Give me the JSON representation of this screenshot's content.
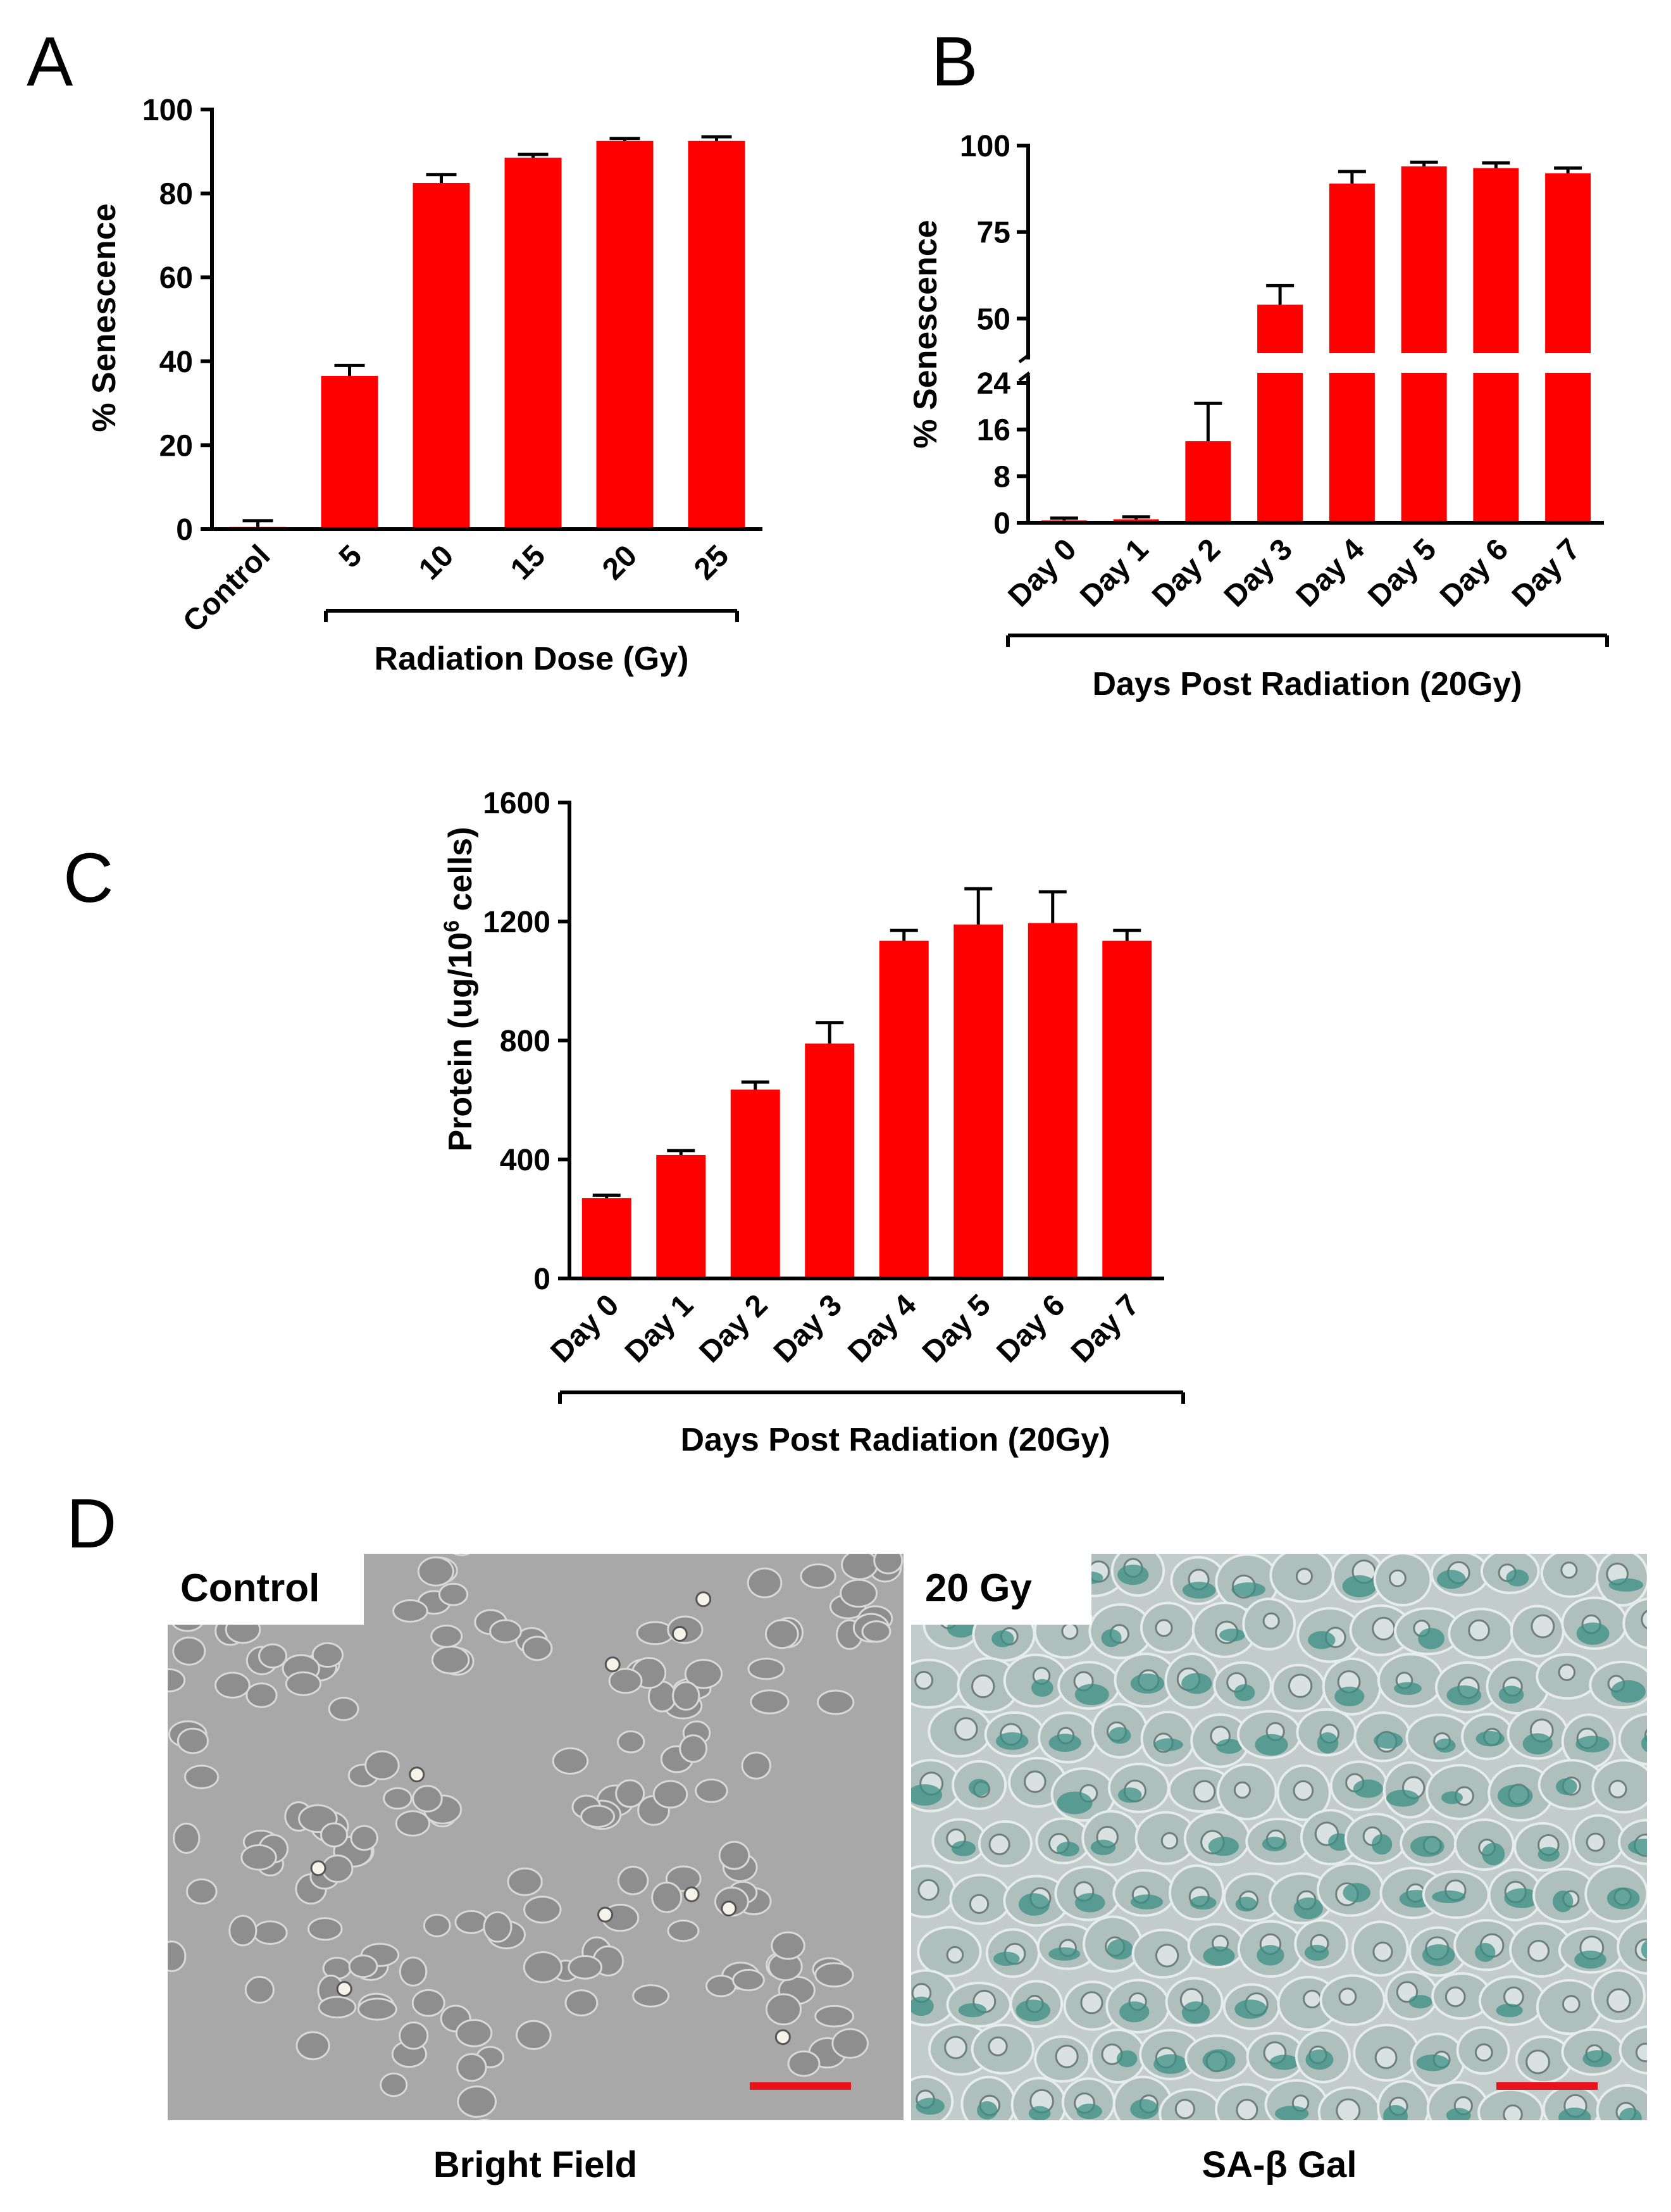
{
  "panels": {
    "A": {
      "letter": "A"
    },
    "B": {
      "letter": "B"
    },
    "C": {
      "letter": "C"
    },
    "D": {
      "letter": "D",
      "left_label": "Control",
      "right_label": "20 Gy",
      "left_caption": "Bright Field",
      "right_caption": "SA-β Gal"
    }
  },
  "colors": {
    "bar": "#ff0000",
    "axis": "#000000",
    "scale_bar": "#e8141b",
    "bright_field_bg": "#a8a8a8",
    "sa_gal_bg": "#c2cdcb",
    "stain": "#3b8f86"
  },
  "chart_data": [
    {
      "panel": "A",
      "type": "bar",
      "categories": [
        "Control",
        "5",
        "10",
        "15",
        "20",
        "25"
      ],
      "values": [
        0.5,
        36.5,
        82.5,
        88.5,
        92.5,
        92.5
      ],
      "errors": [
        1.5,
        2.5,
        2.0,
        0.8,
        0.6,
        1.0
      ],
      "ylabel": "% Senescence",
      "xlabel": "Radiation Dose (Gy)",
      "ylim": [
        0,
        100
      ],
      "yticks": [
        "0",
        "20",
        "40",
        "60",
        "80",
        "100"
      ],
      "grid": false
    },
    {
      "panel": "B",
      "type": "bar",
      "categories": [
        "Day 0",
        "Day 1",
        "Day 2",
        "Day 3",
        "Day 4",
        "Day 5",
        "Day 6",
        "Day 7"
      ],
      "values": [
        0.4,
        0.6,
        14,
        54,
        89,
        94,
        93.5,
        92
      ],
      "errors": [
        0.4,
        0.4,
        6.5,
        5.5,
        3.5,
        1.2,
        1.5,
        1.5
      ],
      "ylabel": "% Senescence",
      "xlabel": "Days Post Radiation (20Gy)",
      "y_axis_break": {
        "lower": [
          0,
          24
        ],
        "upper": [
          40,
          100
        ]
      },
      "yticks_lower": [
        "0",
        "8",
        "16",
        "24"
      ],
      "yticks_upper": [
        "50",
        "75",
        "100"
      ],
      "grid": false
    },
    {
      "panel": "C",
      "type": "bar",
      "categories": [
        "Day 0",
        "Day 1",
        "Day 2",
        "Day 3",
        "Day 4",
        "Day 5",
        "Day 6",
        "Day 7"
      ],
      "values": [
        270,
        415,
        635,
        790,
        1135,
        1190,
        1195,
        1135
      ],
      "errors": [
        10,
        15,
        25,
        70,
        35,
        120,
        105,
        35
      ],
      "ylabel_prefix": "Protein (ug/10",
      "ylabel_sup": "6",
      "ylabel_suffix": " cells)",
      "xlabel": "Days Post Radiation (20Gy)",
      "ylim": [
        0,
        1600
      ],
      "yticks": [
        "0",
        "400",
        "800",
        "1200",
        "1600"
      ],
      "grid": false
    }
  ]
}
